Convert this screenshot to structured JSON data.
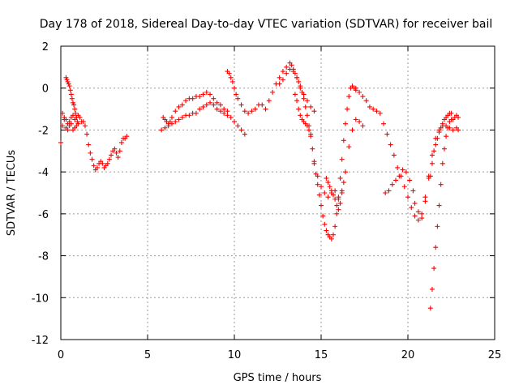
{
  "chart_data": {
    "type": "scatter",
    "title": "Day 178 of 2018, Sidereal Day-to-day VTEC variation (SDTVAR) for receiver bail",
    "xlabel": "GPS time / hours",
    "ylabel": "SDTVAR / TECUs",
    "xlim": [
      0,
      25
    ],
    "ylim": [
      -12,
      2
    ],
    "xticks": [
      "0",
      "5",
      "10",
      "15",
      "20",
      "25"
    ],
    "yticks": [
      "-12",
      "-10",
      "-8",
      "-6",
      "-4",
      "-2",
      "0",
      "2"
    ],
    "grid": true,
    "marker": "+",
    "color": "#ff0000",
    "series": [
      {
        "x": [
          0.0,
          0.1,
          0.2,
          0.3,
          0.4,
          0.5,
          0.6,
          0.7,
          0.8,
          0.9,
          1.0,
          1.1,
          1.2,
          1.3,
          1.4,
          1.5,
          1.6,
          1.7,
          1.8,
          1.9,
          2.0,
          2.1,
          2.2,
          2.3,
          2.4,
          2.5,
          2.6,
          2.7,
          2.8,
          2.9,
          3.0,
          3.1,
          3.2,
          3.3,
          3.4,
          3.5,
          3.6,
          3.7,
          3.8
        ],
        "y": [
          -2.6,
          -1.8,
          -1.4,
          -1.5,
          -1.7,
          -1.6,
          -1.4,
          -1.3,
          -1.5,
          -1.4,
          -1.3,
          -1.4,
          -1.6,
          -1.6,
          -1.8,
          -2.2,
          -2.7,
          -3.1,
          -3.4,
          -3.7,
          -3.9,
          -3.8,
          -3.6,
          -3.5,
          -3.6,
          -3.8,
          -3.7,
          -3.6,
          -3.4,
          -3.2,
          -3.0,
          -2.9,
          -3.1,
          -3.3,
          -3.0,
          -2.6,
          -2.4,
          -2.4,
          -2.3
        ]
      },
      {
        "x": [
          0.3,
          0.35,
          0.4,
          0.45,
          0.5,
          0.55,
          0.6,
          0.65,
          0.7,
          0.75,
          0.8,
          0.85,
          0.9,
          0.95,
          1.0
        ],
        "y": [
          0.5,
          0.4,
          0.3,
          0.2,
          0.1,
          -0.1,
          -0.3,
          -0.5,
          -0.7,
          -0.8,
          -1.0,
          -1.2,
          -1.4,
          -1.6,
          -1.7
        ]
      },
      {
        "x": [
          0.1,
          0.2,
          0.3,
          0.4,
          0.5,
          0.6,
          0.7,
          0.8,
          0.9
        ],
        "y": [
          -1.2,
          -1.5,
          -1.9,
          -2.0,
          -1.8,
          -1.7,
          -2.0,
          -1.9,
          -1.8
        ]
      },
      {
        "x": [
          5.8,
          6.0,
          6.2,
          6.4,
          6.6,
          6.8,
          7.0,
          7.2,
          7.4,
          7.6,
          7.8,
          8.0,
          8.2,
          8.4,
          8.6,
          8.8,
          9.0,
          9.2,
          9.4,
          9.6,
          9.8,
          10.0,
          10.2,
          10.4,
          10.6
        ],
        "y": [
          -2.0,
          -1.9,
          -1.8,
          -1.7,
          -1.6,
          -1.5,
          -1.4,
          -1.3,
          -1.3,
          -1.2,
          -1.2,
          -1.0,
          -0.9,
          -0.8,
          -0.7,
          -0.8,
          -1.0,
          -1.1,
          -1.2,
          -1.3,
          -1.4,
          -1.6,
          -1.8,
          -2.0,
          -2.2
        ]
      },
      {
        "x": [
          5.9,
          6.0,
          6.1,
          6.2,
          6.3,
          6.4,
          6.6,
          6.8,
          7.0,
          7.2,
          7.4,
          7.6,
          7.8,
          8.0,
          8.2,
          8.4,
          8.6,
          8.8,
          9.0,
          9.2,
          9.4,
          9.6
        ],
        "y": [
          -1.4,
          -1.5,
          -1.6,
          -1.7,
          -1.6,
          -1.4,
          -1.1,
          -0.9,
          -0.8,
          -0.6,
          -0.5,
          -0.5,
          -0.4,
          -0.4,
          -0.3,
          -0.2,
          -0.3,
          -0.5,
          -0.7,
          -0.8,
          -1.0,
          -1.1
        ]
      },
      {
        "x": [
          9.6,
          9.7,
          9.8,
          9.9,
          10.0,
          10.1,
          10.2,
          10.4,
          10.6,
          10.8,
          11.0,
          11.2,
          11.4,
          11.6,
          11.8,
          12.0,
          12.2,
          12.4,
          12.6,
          12.8,
          13.0,
          13.2,
          13.3,
          13.4,
          13.5,
          13.6,
          13.7,
          13.8,
          13.9,
          14.0,
          14.1,
          14.2,
          14.3,
          14.4,
          14.5,
          14.6,
          14.7,
          14.8,
          14.9,
          15.0,
          15.1,
          15.2,
          15.3,
          15.4,
          15.5,
          15.6,
          15.7,
          15.8,
          15.9,
          16.0,
          16.1,
          16.2,
          16.3,
          16.4,
          16.5,
          16.6,
          16.7,
          16.8,
          16.9,
          17.0
        ],
        "y": [
          0.8,
          0.7,
          0.5,
          0.3,
          0.0,
          -0.3,
          -0.5,
          -0.8,
          -1.1,
          -1.2,
          -1.1,
          -1.0,
          -0.8,
          -0.8,
          -1.0,
          -0.6,
          -0.2,
          0.2,
          0.5,
          0.8,
          1.0,
          1.2,
          1.1,
          0.9,
          0.7,
          0.5,
          0.3,
          0.1,
          -0.2,
          -0.5,
          -0.9,
          -1.3,
          -1.8,
          -2.3,
          -2.9,
          -3.5,
          -4.1,
          -4.6,
          -5.1,
          -5.6,
          -6.1,
          -6.5,
          -6.8,
          -7.0,
          -7.1,
          -7.2,
          -7.0,
          -6.6,
          -6.0,
          -5.2,
          -4.3,
          -3.4,
          -2.5,
          -1.7,
          -1.0,
          -0.4,
          0.0,
          0.1,
          0.0,
          -0.1
        ]
      },
      {
        "x": [
          12.6,
          12.8,
          13.0,
          13.2,
          13.4,
          13.6,
          13.8,
          14.0,
          14.2,
          14.4,
          14.6
        ],
        "y": [
          0.2,
          0.4,
          0.7,
          0.9,
          0.8,
          0.5,
          0.0,
          -0.3,
          -0.6,
          -0.9,
          -1.1
        ]
      },
      {
        "x": [
          13.5,
          13.6,
          13.7,
          13.8,
          13.9,
          14.0,
          14.1,
          14.2,
          14.3,
          14.4
        ],
        "y": [
          -0.3,
          -0.6,
          -1.0,
          -1.3,
          -1.5,
          -1.6,
          -1.7,
          -1.8,
          -2.0,
          -2.2
        ]
      },
      {
        "x": [
          14.6,
          14.8,
          15.0,
          15.2,
          15.4,
          15.6,
          15.8,
          16.0,
          16.2,
          16.4,
          16.6,
          16.8,
          17.0,
          17.2,
          17.4
        ],
        "y": [
          -3.6,
          -4.2,
          -4.7,
          -5.0,
          -5.2,
          -5.0,
          -4.9,
          -5.3,
          -5.0,
          -4.0,
          -2.8,
          -2.0,
          -1.5,
          -1.6,
          -1.8
        ]
      },
      {
        "x": [
          15.3,
          15.4,
          15.5,
          15.6,
          15.7,
          15.8,
          15.9,
          16.0,
          16.1,
          16.2,
          16.3
        ],
        "y": [
          -4.3,
          -4.5,
          -4.7,
          -4.9,
          -5.1,
          -5.3,
          -5.6,
          -5.8,
          -5.5,
          -4.9,
          -4.5
        ]
      },
      {
        "x": [
          17.0,
          17.2,
          17.4,
          17.6,
          17.8,
          18.0,
          18.2,
          18.4,
          18.6,
          18.8,
          19.0,
          19.2,
          19.4,
          19.6,
          19.8,
          20.0,
          20.2,
          20.4,
          20.6,
          20.8,
          21.0,
          21.2
        ],
        "y": [
          0.0,
          -0.2,
          -0.4,
          -0.6,
          -0.9,
          -1.0,
          -1.1,
          -1.2,
          -1.7,
          -2.2,
          -2.7,
          -3.2,
          -3.8,
          -4.2,
          -4.7,
          -5.2,
          -5.7,
          -6.1,
          -6.3,
          -6.0,
          -5.2,
          -4.2
        ]
      },
      {
        "x": [
          18.7,
          18.9,
          19.1,
          19.3,
          19.5,
          19.7,
          19.9,
          20.1,
          20.3
        ],
        "y": [
          -5.0,
          -4.9,
          -4.6,
          -4.4,
          -4.2,
          -3.9,
          -4.0,
          -4.4,
          -4.9
        ]
      },
      {
        "x": [
          20.4,
          20.6,
          20.8,
          21.0,
          21.2,
          21.4,
          21.6,
          21.8,
          22.0,
          22.2,
          22.4,
          22.6,
          22.8,
          22.9
        ],
        "y": [
          -5.5,
          -5.9,
          -6.2,
          -5.4,
          -4.3,
          -3.2,
          -2.4,
          -2.0,
          -1.8,
          -1.8,
          -1.9,
          -2.0,
          -1.9,
          -2.0
        ]
      },
      {
        "x": [
          21.3,
          21.4,
          21.5,
          21.6,
          21.7,
          21.8,
          21.9,
          22.0,
          22.1,
          22.2,
          22.3,
          22.4,
          22.5,
          22.6,
          22.7,
          22.8,
          22.9
        ],
        "y": [
          -10.5,
          -9.6,
          -8.6,
          -7.6,
          -6.6,
          -5.6,
          -4.6,
          -3.6,
          -2.9,
          -2.3,
          -1.9,
          -1.6,
          -1.5,
          -1.5,
          -1.4,
          -1.3,
          -1.4
        ]
      },
      {
        "x": [
          21.3,
          21.4,
          21.5,
          21.6,
          21.7,
          21.8,
          21.9,
          22.0,
          22.1,
          22.2,
          22.3,
          22.4,
          22.5
        ],
        "y": [
          -4.2,
          -3.6,
          -3.0,
          -2.7,
          -2.4,
          -2.1,
          -1.9,
          -1.7,
          -1.5,
          -1.4,
          -1.3,
          -1.2,
          -1.2
        ]
      }
    ]
  }
}
